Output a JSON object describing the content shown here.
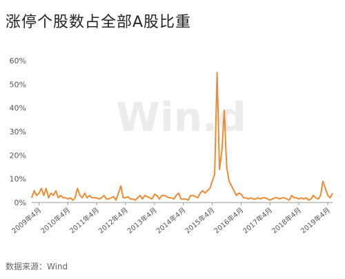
{
  "title": "涨停个股数占全部A股比重",
  "source": "数据来源：Wind",
  "watermark": "Win.d",
  "colors": {
    "line": "#f08a2e",
    "axis": "#999999",
    "text": "#555555"
  },
  "chart_data": {
    "type": "line",
    "title": "涨停个股数占全部A股比重",
    "xlabel": "",
    "ylabel": "",
    "ylim": [
      0,
      60
    ],
    "y_ticks": [
      "0%",
      "10%",
      "20%",
      "30%",
      "40%",
      "50%",
      "60%"
    ],
    "y_tick_values": [
      0,
      10,
      20,
      30,
      40,
      50,
      60
    ],
    "x_range": [
      "2009-01",
      "2019-06"
    ],
    "x_ticks": [
      "2009年4月",
      "2010年4月",
      "2011年4月",
      "2012年4月",
      "2013年4月",
      "2014年4月",
      "2015年4月",
      "2016年4月",
      "2017年4月",
      "2018年4月",
      "2019年4月"
    ],
    "x_tick_dates": [
      "2009-04",
      "2010-04",
      "2011-04",
      "2012-04",
      "2013-04",
      "2014-04",
      "2015-04",
      "2016-04",
      "2017-04",
      "2018-04",
      "2019-04"
    ],
    "grid": false,
    "legend": "none",
    "series": [
      {
        "x": [
          "2009-01",
          "2009-02",
          "2009-03",
          "2009-04",
          "2009-05",
          "2009-06",
          "2009-07",
          "2009-08",
          "2009-09",
          "2009-10",
          "2009-11",
          "2009-12",
          "2010-01",
          "2010-02",
          "2010-03",
          "2010-04",
          "2010-05",
          "2010-06",
          "2010-07",
          "2010-08",
          "2010-09",
          "2010-10",
          "2010-11",
          "2010-12",
          "2011-01",
          "2011-02",
          "2011-03",
          "2011-04",
          "2011-05",
          "2011-06",
          "2011-07",
          "2011-08",
          "2011-09",
          "2011-10",
          "2011-11",
          "2011-12",
          "2012-01",
          "2012-02",
          "2012-03",
          "2012-04",
          "2012-05",
          "2012-06",
          "2012-07",
          "2012-08",
          "2012-09",
          "2012-10",
          "2012-11",
          "2012-12",
          "2013-01",
          "2013-02",
          "2013-03",
          "2013-04",
          "2013-05",
          "2013-06",
          "2013-07",
          "2013-08",
          "2013-09",
          "2013-10",
          "2013-11",
          "2013-12",
          "2014-01",
          "2014-02",
          "2014-03",
          "2014-04",
          "2014-05",
          "2014-06",
          "2014-07",
          "2014-08",
          "2014-09",
          "2014-10",
          "2014-11",
          "2014-12",
          "2015-01",
          "2015-02",
          "2015-03",
          "2015-04",
          "2015-05",
          "2015-06",
          "2015-07",
          "2015-08",
          "2015-09",
          "2015-10",
          "2015-11",
          "2015-12",
          "2016-01",
          "2016-02",
          "2016-03",
          "2016-04",
          "2016-05",
          "2016-06",
          "2016-07",
          "2016-08",
          "2016-09",
          "2016-10",
          "2016-11",
          "2016-12",
          "2017-01",
          "2017-02",
          "2017-03",
          "2017-04",
          "2017-05",
          "2017-06",
          "2017-07",
          "2017-08",
          "2017-09",
          "2017-10",
          "2017-11",
          "2017-12",
          "2018-01",
          "2018-02",
          "2018-03",
          "2018-04",
          "2018-05",
          "2018-06",
          "2018-07",
          "2018-08",
          "2018-09",
          "2018-10",
          "2018-11",
          "2018-12",
          "2019-01",
          "2019-02",
          "2019-03",
          "2019-04",
          "2019-05",
          "2019-06"
        ],
        "values": [
          2,
          5,
          3,
          4,
          6,
          3,
          6,
          2,
          4,
          3,
          5,
          2,
          3,
          2,
          2,
          1.5,
          2,
          1,
          2,
          6,
          3,
          2,
          4,
          2,
          3,
          2,
          2,
          2,
          1.5,
          2,
          3,
          1.5,
          1.5,
          2,
          2.5,
          1,
          4,
          7,
          2,
          2,
          2.5,
          1.5,
          1.5,
          1,
          2,
          3,
          1.5,
          3,
          2.5,
          2,
          1.5,
          3.5,
          3,
          1.5,
          3,
          3,
          2.5,
          2,
          2,
          1.5,
          3,
          4,
          1.5,
          1.5,
          1.5,
          1,
          3,
          3,
          2.5,
          2,
          4,
          5,
          4,
          5,
          6,
          9,
          12,
          55,
          14,
          22,
          39,
          15,
          9,
          7,
          5,
          3,
          4,
          3.5,
          2,
          2,
          1.5,
          2,
          1.5,
          1.5,
          2,
          1.5,
          2,
          2,
          1.5,
          1,
          1.5,
          2,
          2,
          1.5,
          2,
          2,
          1.5,
          1,
          3,
          2,
          2,
          1.5,
          2,
          1.5,
          2,
          1,
          1.5,
          3,
          2,
          1.5,
          3,
          9,
          6,
          3,
          2,
          4
        ]
      }
    ]
  }
}
